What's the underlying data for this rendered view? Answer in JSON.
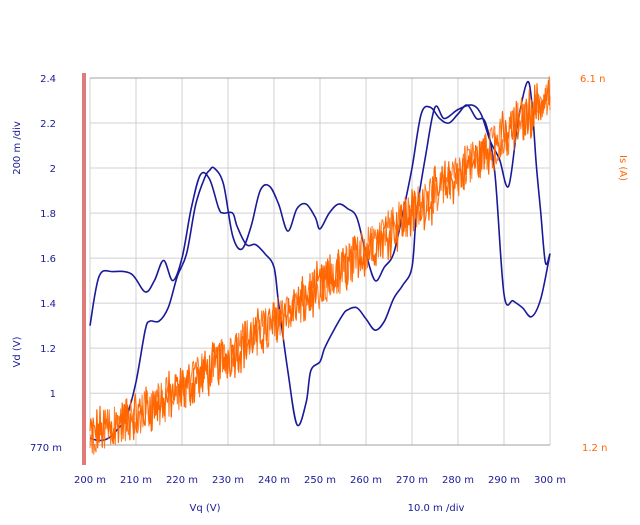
{
  "chart_data": {
    "type": "line",
    "xlabel": "Vq (V)",
    "x_scale_label": "10.0 m /div",
    "x_ticks": [
      "200 m",
      "210 m",
      "220 m",
      "230 m",
      "240 m",
      "250 m",
      "260 m",
      "270 m",
      "280 m",
      "290 m",
      "300 m"
    ],
    "xlim": [
      0.2,
      0.3
    ],
    "left_axis": {
      "label": "Vd (V)",
      "scale_label": "200 m /div",
      "ticks": [
        "2.4",
        "2.2",
        "2",
        "1.8",
        "1.6",
        "1.4",
        "1.2",
        "1"
      ],
      "tick_values": [
        2.4,
        2.2,
        2.0,
        1.8,
        1.6,
        1.4,
        1.2,
        1.0
      ],
      "min_label": "770 m",
      "ylim": [
        0.77,
        2.4
      ],
      "color": "#1a1a99"
    },
    "right_axis": {
      "label": "Is (A)",
      "max_label": "6.1 n",
      "min_label": "1.2 n",
      "ylim": [
        1.2,
        6.1
      ],
      "color": "#ff6600"
    },
    "grid": true,
    "series": [
      {
        "axis": "left",
        "color": "#1a1a99",
        "x": [
          0.2,
          0.202,
          0.205,
          0.209,
          0.212,
          0.214,
          0.216,
          0.218,
          0.22,
          0.222,
          0.224,
          0.226,
          0.228,
          0.229,
          0.231,
          0.232,
          0.234,
          0.236,
          0.238,
          0.24,
          0.241,
          0.243,
          0.245,
          0.247,
          0.248,
          0.25,
          0.251,
          0.253,
          0.255,
          0.256,
          0.258,
          0.26,
          0.262,
          0.264,
          0.266,
          0.268,
          0.27,
          0.271,
          0.273,
          0.275,
          0.277,
          0.28,
          0.283,
          0.285,
          0.287,
          0.289,
          0.291,
          0.293,
          0.295,
          0.296,
          0.297,
          0.298,
          0.299,
          0.3
        ],
        "y": [
          1.3,
          1.52,
          1.54,
          1.53,
          1.45,
          1.5,
          1.59,
          1.5,
          1.6,
          1.82,
          1.97,
          1.95,
          1.82,
          1.8,
          1.8,
          1.74,
          1.66,
          1.66,
          1.62,
          1.56,
          1.4,
          1.1,
          0.86,
          0.96,
          1.1,
          1.14,
          1.2,
          1.28,
          1.35,
          1.37,
          1.38,
          1.33,
          1.28,
          1.32,
          1.42,
          1.48,
          1.56,
          1.8,
          2.06,
          2.27,
          2.22,
          2.26,
          2.28,
          2.24,
          2.12,
          2.04,
          1.92,
          2.2,
          2.38,
          2.3,
          2.02,
          1.8,
          1.58,
          1.62
        ]
      },
      {
        "axis": "left",
        "color": "#1a1a99",
        "x": [
          0.2,
          0.202,
          0.204,
          0.206,
          0.208,
          0.21,
          0.212,
          0.213,
          0.215,
          0.217,
          0.219,
          0.221,
          0.223,
          0.225,
          0.226,
          0.227,
          0.229,
          0.231,
          0.233,
          0.235,
          0.237,
          0.239,
          0.241,
          0.243,
          0.245,
          0.247,
          0.249,
          0.25,
          0.252,
          0.254,
          0.256,
          0.258,
          0.26,
          0.262,
          0.264,
          0.266,
          0.268,
          0.27,
          0.272,
          0.274,
          0.276,
          0.278,
          0.28,
          0.282,
          0.284,
          0.286,
          0.288,
          0.29,
          0.292,
          0.294,
          0.296,
          0.298,
          0.3
        ],
        "y": [
          0.8,
          0.79,
          0.8,
          0.84,
          0.9,
          1.05,
          1.28,
          1.32,
          1.32,
          1.38,
          1.52,
          1.62,
          1.84,
          1.96,
          1.99,
          2.0,
          1.93,
          1.7,
          1.64,
          1.74,
          1.9,
          1.92,
          1.84,
          1.72,
          1.82,
          1.84,
          1.78,
          1.73,
          1.8,
          1.84,
          1.82,
          1.78,
          1.62,
          1.5,
          1.56,
          1.62,
          1.8,
          2.0,
          2.24,
          2.27,
          2.22,
          2.2,
          2.24,
          2.28,
          2.22,
          2.2,
          1.98,
          1.44,
          1.41,
          1.38,
          1.34,
          1.42,
          1.62
        ]
      },
      {
        "axis": "right",
        "color": "#ff6600",
        "x": [
          0.2,
          0.205,
          0.21,
          0.215,
          0.22,
          0.225,
          0.23,
          0.235,
          0.24,
          0.245,
          0.25,
          0.255,
          0.26,
          0.265,
          0.27,
          0.275,
          0.28,
          0.285,
          0.29,
          0.295,
          0.3
        ],
        "y": [
          1.35,
          1.45,
          1.6,
          1.75,
          1.95,
          2.15,
          2.4,
          2.6,
          2.85,
          3.05,
          3.3,
          3.55,
          3.8,
          4.05,
          4.3,
          4.55,
          4.8,
          5.05,
          5.3,
          5.6,
          5.9
        ]
      }
    ]
  }
}
